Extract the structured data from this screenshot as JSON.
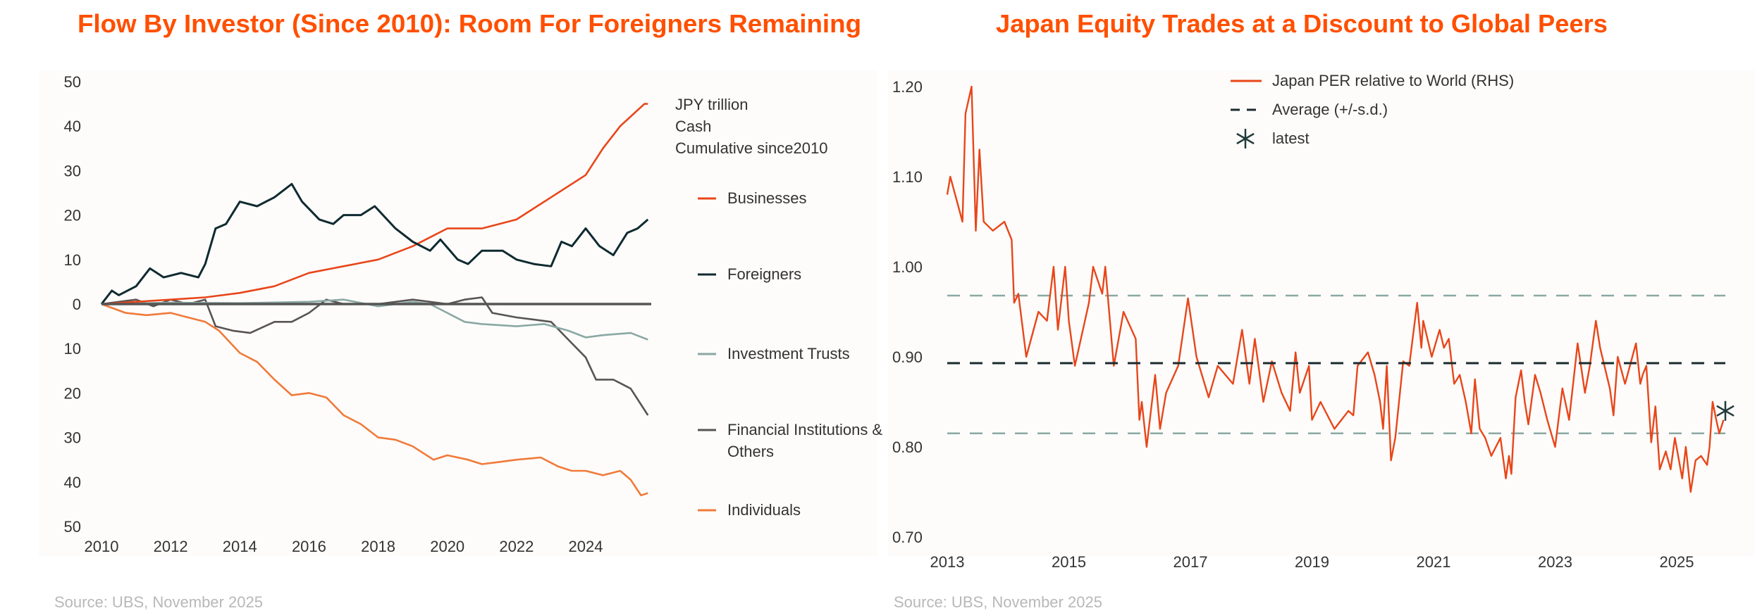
{
  "chart_data": [
    {
      "type": "line",
      "title": "Flow By Investor (Since 2010): Room For Foreigners Remaining",
      "unit_note": [
        "JPY trillion",
        "Cash",
        "Cumulative since2010"
      ],
      "xlabel": "",
      "ylabel": "",
      "xlim": [
        2010,
        2025.8
      ],
      "ylim": [
        -50,
        50
      ],
      "x_ticks": [
        2010,
        2012,
        2014,
        2016,
        2018,
        2020,
        2022,
        2024
      ],
      "y_ticks": [
        50,
        40,
        30,
        20,
        10,
        0,
        -10,
        -20,
        -30,
        -40,
        -50
      ],
      "y_tick_labels": [
        "50",
        "40",
        "30",
        "20",
        "10",
        "0",
        "10",
        "20",
        "30",
        "40",
        "50"
      ],
      "legend_position": "right",
      "source": "Source: UBS, November 2025",
      "series": [
        {
          "name": "Businesses",
          "color": "#e8461a",
          "x": [
            2010,
            2011,
            2012,
            2013,
            2014,
            2015,
            2016,
            2017,
            2018,
            2019,
            2019.5,
            2020,
            2021,
            2022,
            2023,
            2024,
            2024.5,
            2025,
            2025.7,
            2025.8
          ],
          "y": [
            0,
            0.5,
            1,
            1.5,
            2.5,
            4,
            7,
            8.5,
            10,
            13,
            15,
            17,
            17,
            19,
            24,
            29,
            35,
            40,
            45,
            45
          ]
        },
        {
          "name": "Foreigners",
          "color": "#0f2a30",
          "x": [
            2010,
            2010.3,
            2010.5,
            2011,
            2011.4,
            2011.8,
            2012.3,
            2012.8,
            2013,
            2013.3,
            2013.6,
            2014,
            2014.5,
            2015,
            2015.5,
            2015.8,
            2016.3,
            2016.7,
            2017,
            2017.5,
            2017.9,
            2018.5,
            2019,
            2019.5,
            2019.8,
            2020.3,
            2020.6,
            2021,
            2021.6,
            2022,
            2022.5,
            2023,
            2023.3,
            2023.6,
            2024,
            2024.4,
            2024.8,
            2025.2,
            2025.5,
            2025.8
          ],
          "y": [
            0,
            3,
            2,
            4,
            8,
            6,
            7,
            6,
            9,
            17,
            18,
            23,
            22,
            24,
            27,
            23,
            19,
            18,
            20,
            20,
            22,
            17,
            14,
            12,
            14.5,
            10,
            9,
            12,
            12,
            10,
            9,
            8.5,
            14,
            13,
            17,
            13,
            11,
            16,
            17,
            19
          ]
        },
        {
          "name": "Investment Trusts",
          "color": "#8aa8a4",
          "x": [
            2010,
            2012,
            2014,
            2016,
            2017,
            2018,
            2019,
            2019.5,
            2020,
            2020.5,
            2021,
            2022,
            2022.8,
            2023.5,
            2024,
            2024.5,
            2025.3,
            2025.8
          ],
          "y": [
            0,
            0.3,
            0.2,
            0.5,
            1,
            -0.5,
            0.5,
            0,
            -2,
            -4,
            -4.5,
            -5,
            -4.5,
            -6,
            -7.5,
            -7,
            -6.5,
            -8
          ]
        },
        {
          "name": "Financial Institutions & Others",
          "color": "#595454",
          "x": [
            2010,
            2011,
            2011.5,
            2012,
            2012.5,
            2013,
            2013.3,
            2013.8,
            2014.3,
            2015,
            2015.5,
            2016,
            2016.5,
            2017,
            2018,
            2019,
            2020,
            2020.5,
            2021,
            2021.3,
            2022,
            2022.5,
            2023,
            2023.5,
            2024,
            2024.3,
            2024.8,
            2025.3,
            2025.8
          ],
          "y": [
            0,
            1,
            -0.5,
            1,
            0,
            1,
            -5,
            -6,
            -6.5,
            -4,
            -4,
            -2,
            1,
            0,
            0,
            1,
            0,
            1,
            1.5,
            -2,
            -3,
            -3.5,
            -4,
            -8,
            -12,
            -17,
            -17,
            -19,
            -25
          ]
        },
        {
          "name": "Individuals",
          "color": "#f07a3a",
          "x": [
            2010,
            2010.7,
            2011.3,
            2012,
            2012.5,
            2013,
            2013.4,
            2014,
            2014.5,
            2015,
            2015.5,
            2016,
            2016.5,
            2017,
            2017.5,
            2018,
            2018.5,
            2019,
            2019.6,
            2020,
            2020.6,
            2021,
            2021.5,
            2022,
            2022.7,
            2023.2,
            2023.6,
            2024,
            2024.5,
            2025,
            2025.3,
            2025.6,
            2025.8
          ],
          "y": [
            0,
            -2,
            -2.5,
            -2,
            -3,
            -4,
            -6,
            -11,
            -13,
            -17,
            -20.5,
            -20,
            -21,
            -25,
            -27,
            -30,
            -30.5,
            -32,
            -35,
            -34,
            -35,
            -36,
            -35.5,
            -35,
            -34.5,
            -36.5,
            -37.5,
            -37.5,
            -38.5,
            -37.5,
            -39.5,
            -43,
            -42.5
          ]
        }
      ]
    },
    {
      "type": "line",
      "title": "Japan Equity Trades at a Discount to Global Peers",
      "xlabel": "",
      "ylabel": "",
      "xlim": [
        2013,
        2026
      ],
      "ylim": [
        0.7,
        1.2
      ],
      "x_ticks": [
        2013,
        2015,
        2017,
        2019,
        2021,
        2023,
        2025
      ],
      "y_ticks": [
        1.2,
        1.1,
        1.0,
        0.9,
        0.8,
        0.7
      ],
      "y_tick_labels": [
        "1.20",
        "1.10",
        "1.00",
        "0.90",
        "0.80",
        "0.70"
      ],
      "legend_position": "top-center",
      "source": "Source: UBS, November 2025",
      "series": [
        {
          "name": "Japan PER relative to World (RHS)",
          "color": "#e8461a",
          "x": [
            2013,
            2013.05,
            2013.25,
            2013.3,
            2013.4,
            2013.47,
            2013.53,
            2013.6,
            2013.75,
            2013.94,
            2014.06,
            2014.1,
            2014.17,
            2014.3,
            2014.5,
            2014.64,
            2014.75,
            2014.82,
            2014.94,
            2015.0,
            2015.1,
            2015.33,
            2015.4,
            2015.55,
            2015.6,
            2015.74,
            2015.82,
            2015.9,
            2016.1,
            2016.16,
            2016.2,
            2016.28,
            2016.42,
            2016.5,
            2016.6,
            2016.8,
            2016.96,
            2017.1,
            2017.3,
            2017.45,
            2017.7,
            2017.85,
            2017.97,
            2018.06,
            2018.2,
            2018.34,
            2018.5,
            2018.64,
            2018.73,
            2018.8,
            2018.95,
            2019.0,
            2019.14,
            2019.37,
            2019.6,
            2019.68,
            2019.75,
            2019.92,
            2020.03,
            2020.12,
            2020.17,
            2020.23,
            2020.3,
            2020.37,
            2020.5,
            2020.6,
            2020.73,
            2020.8,
            2020.83,
            2020.97,
            2021.1,
            2021.17,
            2021.25,
            2021.34,
            2021.43,
            2021.53,
            2021.62,
            2021.68,
            2021.76,
            2021.85,
            2021.95,
            2022.1,
            2022.19,
            2022.24,
            2022.28,
            2022.35,
            2022.44,
            2022.5,
            2022.56,
            2022.67,
            2022.76,
            2022.87,
            2023.0,
            2023.12,
            2023.23,
            2023.37,
            2023.49,
            2023.57,
            2023.67,
            2023.74,
            2023.9,
            2023.96,
            2024.03,
            2024.15,
            2024.33,
            2024.4,
            2024.44,
            2024.5,
            2024.58,
            2024.65,
            2024.72,
            2024.82,
            2024.9,
            2024.97,
            2025.09,
            2025.15,
            2025.23,
            2025.31,
            2025.4,
            2025.5,
            2025.54,
            2025.59,
            2025.65,
            2025.7,
            2025.77
          ],
          "y": [
            1.08,
            1.1,
            1.05,
            1.17,
            1.2,
            1.04,
            1.13,
            1.05,
            1.04,
            1.05,
            1.03,
            0.96,
            0.97,
            0.9,
            0.95,
            0.94,
            1.0,
            0.93,
            1.0,
            0.94,
            0.89,
            0.96,
            1.0,
            0.97,
            1.0,
            0.89,
            0.92,
            0.95,
            0.92,
            0.83,
            0.85,
            0.8,
            0.88,
            0.82,
            0.86,
            0.89,
            0.965,
            0.9,
            0.855,
            0.89,
            0.87,
            0.93,
            0.87,
            0.92,
            0.85,
            0.895,
            0.86,
            0.84,
            0.905,
            0.86,
            0.89,
            0.83,
            0.85,
            0.82,
            0.84,
            0.835,
            0.89,
            0.905,
            0.88,
            0.85,
            0.82,
            0.89,
            0.785,
            0.81,
            0.895,
            0.89,
            0.96,
            0.91,
            0.94,
            0.9,
            0.93,
            0.91,
            0.92,
            0.87,
            0.88,
            0.85,
            0.815,
            0.875,
            0.82,
            0.81,
            0.79,
            0.81,
            0.765,
            0.79,
            0.77,
            0.855,
            0.885,
            0.85,
            0.825,
            0.88,
            0.86,
            0.83,
            0.8,
            0.865,
            0.83,
            0.915,
            0.86,
            0.89,
            0.94,
            0.91,
            0.865,
            0.835,
            0.9,
            0.87,
            0.915,
            0.87,
            0.88,
            0.89,
            0.805,
            0.845,
            0.775,
            0.795,
            0.775,
            0.81,
            0.765,
            0.8,
            0.75,
            0.785,
            0.79,
            0.78,
            0.8,
            0.85,
            0.83,
            0.815,
            0.83
          ]
        },
        {
          "name": "Average (+/-s.d.)",
          "color": "#1a2a2e",
          "value": 0.893,
          "upper": 0.968,
          "lower": 0.815,
          "band_color": "#8aa8a4"
        },
        {
          "name": "latest",
          "color": "#1f3a3a",
          "x": 2025.8,
          "y": 0.84
        }
      ]
    }
  ]
}
